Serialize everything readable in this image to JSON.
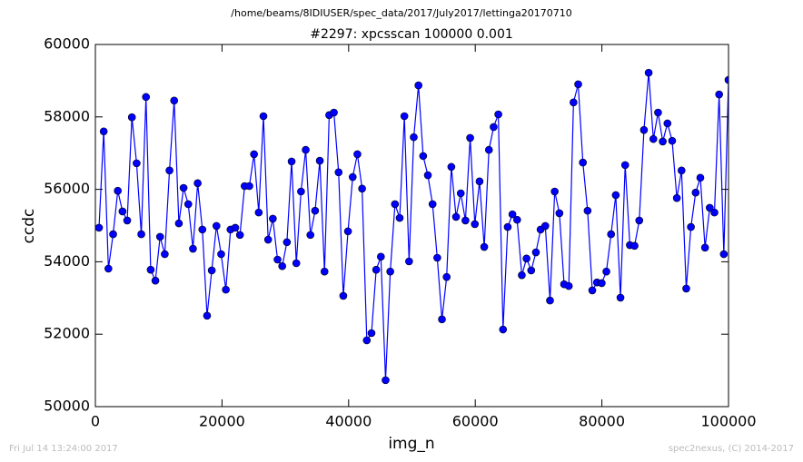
{
  "chart_data": {
    "type": "line",
    "title": "/home/beams/8IDIUSER/spec_data/2017/July2017/lettinga20170710",
    "subtitle": "#2297: xpcsscan 100000 0.001",
    "x_label": "img_n",
    "y_label": "ccdc",
    "footer_left": "Fri Jul 14 13:24:00 2017",
    "footer_right": "spec2nexus, (C) 2014-2017",
    "color": "#0000ff",
    "marker": true,
    "grid": false,
    "xlim": [
      0,
      100000
    ],
    "xticks": [
      0,
      20000,
      40000,
      60000,
      80000,
      100000
    ],
    "ylim": [
      50000,
      60000
    ],
    "yticks": [
      50000,
      52000,
      54000,
      56000,
      58000,
      60000
    ],
    "x": [
      574,
      1316,
      2058,
      2800,
      3542,
      4284,
      5026,
      5768,
      6510,
      7252,
      7994,
      8736,
      9478,
      10220,
      10962,
      11704,
      12446,
      13188,
      13930,
      14672,
      15414,
      16156,
      16898,
      17640,
      18382,
      19124,
      19866,
      20608,
      21350,
      22092,
      22834,
      23576,
      24318,
      25060,
      25802,
      26544,
      27286,
      28028,
      28770,
      29512,
      30254,
      30996,
      31738,
      32480,
      33222,
      33964,
      34706,
      35448,
      36190,
      36932,
      37674,
      38416,
      39158,
      39900,
      40642,
      41384,
      42126,
      42868,
      43610,
      44352,
      45094,
      45836,
      46578,
      47320,
      48062,
      48804,
      49546,
      50288,
      51030,
      51772,
      52514,
      53256,
      53998,
      54740,
      55482,
      56224,
      56966,
      57708,
      58450,
      59192,
      59934,
      60676,
      61418,
      62160,
      62902,
      63644,
      64386,
      65128,
      65870,
      66612,
      67354,
      68096,
      68838,
      69580,
      70322,
      71064,
      71806,
      72548,
      73290,
      74032,
      74774,
      75516,
      76258,
      77000,
      77742,
      78484,
      79226,
      79968,
      80710,
      81452,
      82194,
      82936,
      83678,
      84420,
      85162,
      85904,
      86646,
      87388,
      88130,
      88872,
      89614,
      90356,
      91098,
      91840,
      92582,
      93324,
      94066,
      94808,
      95550,
      96292,
      97034,
      97776,
      98518,
      99260,
      100000
    ],
    "values": [
      54940,
      57600,
      53810,
      54760,
      55960,
      55390,
      55140,
      57990,
      56720,
      54760,
      58550,
      53780,
      53480,
      54690,
      54210,
      56520,
      58450,
      55060,
      56040,
      55590,
      54360,
      56170,
      54890,
      52510,
      53760,
      54990,
      54210,
      53230,
      54890,
      54940,
      54740,
      56090,
      56090,
      56970,
      55360,
      58020,
      54610,
      55190,
      54060,
      53880,
      54540,
      56770,
      53960,
      55940,
      57090,
      54740,
      55410,
      56790,
      53730,
      58050,
      58120,
      56470,
      53060,
      54840,
      56340,
      56970,
      56020,
      51830,
      52030,
      53780,
      54140,
      50730,
      53730,
      55590,
      55210,
      58020,
      54010,
      57440,
      58870,
      56920,
      56390,
      55590,
      54110,
      52410,
      53580,
      56620,
      55240,
      55890,
      55140,
      57420,
      55040,
      56220,
      54410,
      57090,
      57720,
      58070,
      52130,
      54960,
      55310,
      55160,
      53630,
      54090,
      53760,
      54260,
      54890,
      54990,
      52930,
      55940,
      55340,
      53380,
      53330,
      58400,
      58900,
      56740,
      55410,
      53210,
      53430,
      53410,
      53730,
      54760,
      55840,
      53010,
      56670,
      54460,
      54440,
      55140,
      57640,
      59220,
      57390,
      58120,
      57320,
      57820,
      57340,
      55760,
      56520,
      53260,
      54960,
      55910,
      56320,
      54390,
      55490,
      55360,
      58620,
      54210,
      59020
    ]
  }
}
